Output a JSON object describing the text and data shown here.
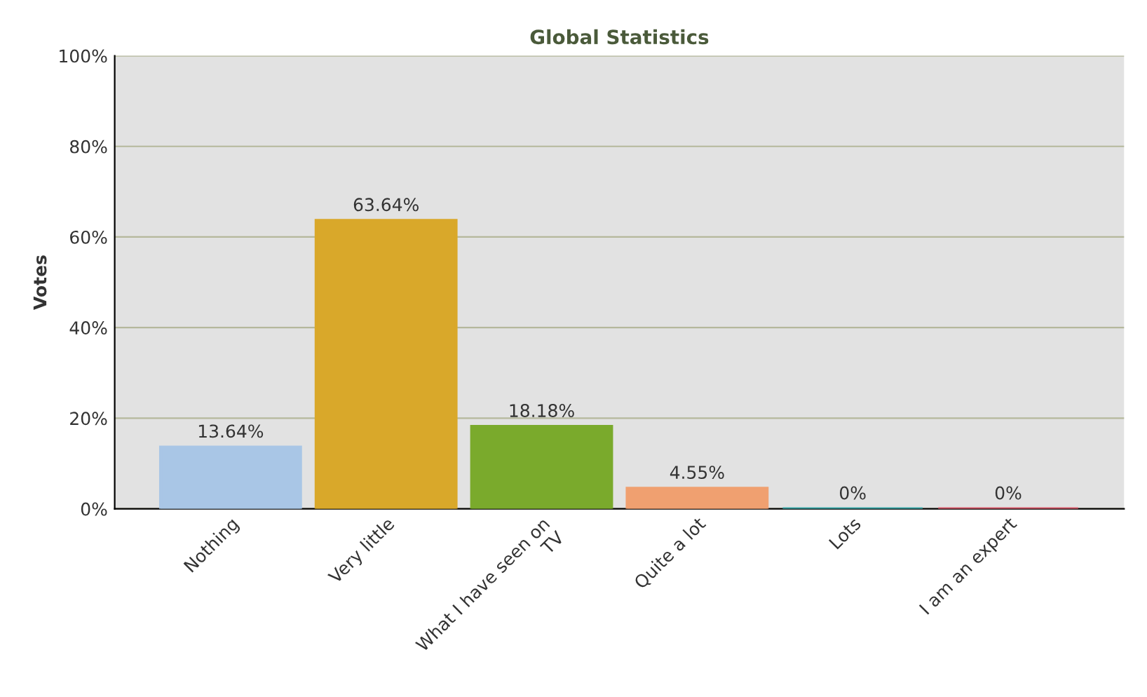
{
  "chart_data": {
    "type": "bar",
    "title": "Global Statistics",
    "ylabel": "Votes",
    "categories": [
      "Nothing",
      "Very little",
      "What I have seen on\nTV",
      "Quite a lot",
      "Lots",
      "I am an expert"
    ],
    "values": [
      13.64,
      63.64,
      18.18,
      4.55,
      0,
      0
    ],
    "colors": [
      "#a9c6e6",
      "#d9a82a",
      "#7aaa2c",
      "#f0a070",
      "#3aa8a8",
      "#d85a6a"
    ],
    "value_labels": [
      "13.64%",
      "63.64%",
      "18.18%",
      "4.55%",
      "0%",
      "0%"
    ],
    "ylim": [
      0,
      100
    ],
    "yticks": [
      {
        "value": 0,
        "label": "0%"
      },
      {
        "value": 20,
        "label": "20%"
      },
      {
        "value": 40,
        "label": "40%"
      },
      {
        "value": 60,
        "label": "60%"
      },
      {
        "value": 80,
        "label": "80%"
      },
      {
        "value": 100,
        "label": "100%"
      }
    ],
    "grid": "y"
  }
}
